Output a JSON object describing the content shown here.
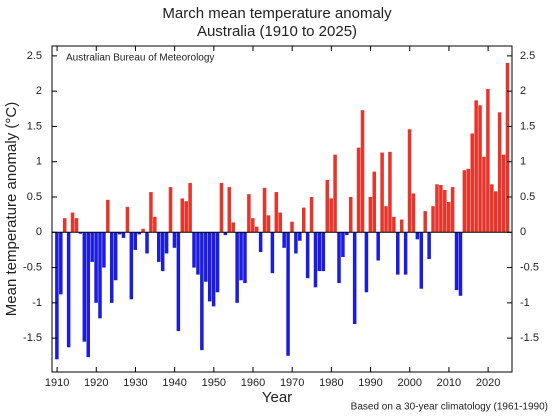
{
  "chart_data": {
    "type": "bar",
    "title": [
      "March mean temperature anomaly",
      "Australia (1910 to 2025)"
    ],
    "ylabel": "Mean temperature anomaly (°C)",
    "xlabel": "Year",
    "annotation": "Australian Bureau of Meteorology",
    "footnote": "Based on a 30-year climatology (1961-1990)",
    "x": [
      1910,
      1911,
      1912,
      1913,
      1914,
      1915,
      1916,
      1917,
      1918,
      1919,
      1920,
      1921,
      1922,
      1923,
      1924,
      1925,
      1926,
      1927,
      1928,
      1929,
      1930,
      1931,
      1932,
      1933,
      1934,
      1935,
      1936,
      1937,
      1938,
      1939,
      1940,
      1941,
      1942,
      1943,
      1944,
      1945,
      1946,
      1947,
      1948,
      1949,
      1950,
      1951,
      1952,
      1953,
      1954,
      1955,
      1956,
      1957,
      1958,
      1959,
      1960,
      1961,
      1962,
      1963,
      1964,
      1965,
      1966,
      1967,
      1968,
      1969,
      1970,
      1971,
      1972,
      1973,
      1974,
      1975,
      1976,
      1977,
      1978,
      1979,
      1980,
      1981,
      1982,
      1983,
      1984,
      1985,
      1986,
      1987,
      1988,
      1989,
      1990,
      1991,
      1992,
      1993,
      1994,
      1995,
      1996,
      1997,
      1998,
      1999,
      2000,
      2001,
      2002,
      2003,
      2004,
      2005,
      2006,
      2007,
      2008,
      2009,
      2010,
      2011,
      2012,
      2013,
      2014,
      2015,
      2016,
      2017,
      2018,
      2019,
      2020,
      2021,
      2022,
      2023,
      2024,
      2025
    ],
    "values": [
      -1.8,
      -0.88,
      0.2,
      -1.63,
      0.28,
      0.2,
      -0.02,
      -1.55,
      -1.77,
      -0.42,
      -1.0,
      -1.22,
      -0.5,
      0.46,
      -1.0,
      -0.68,
      -0.03,
      -0.08,
      0.36,
      -0.95,
      -0.25,
      -0.03,
      0.05,
      -0.3,
      0.57,
      0.22,
      -0.42,
      -0.55,
      -0.3,
      0.64,
      -0.22,
      -1.4,
      0.48,
      0.44,
      0.7,
      -0.5,
      -0.6,
      -1.67,
      -0.7,
      -0.98,
      -1.05,
      -0.85,
      0.7,
      -0.04,
      0.64,
      0.14,
      -1.0,
      -0.68,
      -0.72,
      0.54,
      0.2,
      0.08,
      -0.28,
      0.63,
      0.24,
      -0.58,
      0.57,
      0.28,
      -0.22,
      -1.75,
      0.15,
      -0.3,
      -0.12,
      0.35,
      -0.65,
      0.5,
      -0.78,
      -0.55,
      -0.55,
      0.74,
      0.48,
      1.1,
      -0.72,
      -0.35,
      -0.04,
      0.5,
      -1.3,
      1.2,
      1.73,
      -0.85,
      0.5,
      0.86,
      -0.4,
      1.13,
      0.37,
      1.14,
      0.22,
      -0.6,
      0.18,
      -0.6,
      1.46,
      0.55,
      -0.1,
      -0.8,
      0.3,
      -0.38,
      0.37,
      0.68,
      0.67,
      0.6,
      0.43,
      0.64,
      -0.82,
      -0.9,
      0.88,
      0.9,
      1.4,
      1.87,
      1.8,
      1.07,
      2.03,
      0.68,
      0.58,
      1.7,
      1.1,
      2.4
    ],
    "positive_color": "#e8352c",
    "negative_color": "#1c1ce0",
    "xlim": [
      1908.7,
      2026.1
    ],
    "xticks": [
      1910,
      1920,
      1930,
      1940,
      1950,
      1960,
      1970,
      1980,
      1990,
      2000,
      2010,
      2020
    ],
    "ylim": [
      -1.98,
      2.64
    ],
    "yticks": [
      -1.5,
      -1,
      -0.5,
      0,
      0.5,
      1,
      1.5,
      2,
      2.5
    ]
  }
}
